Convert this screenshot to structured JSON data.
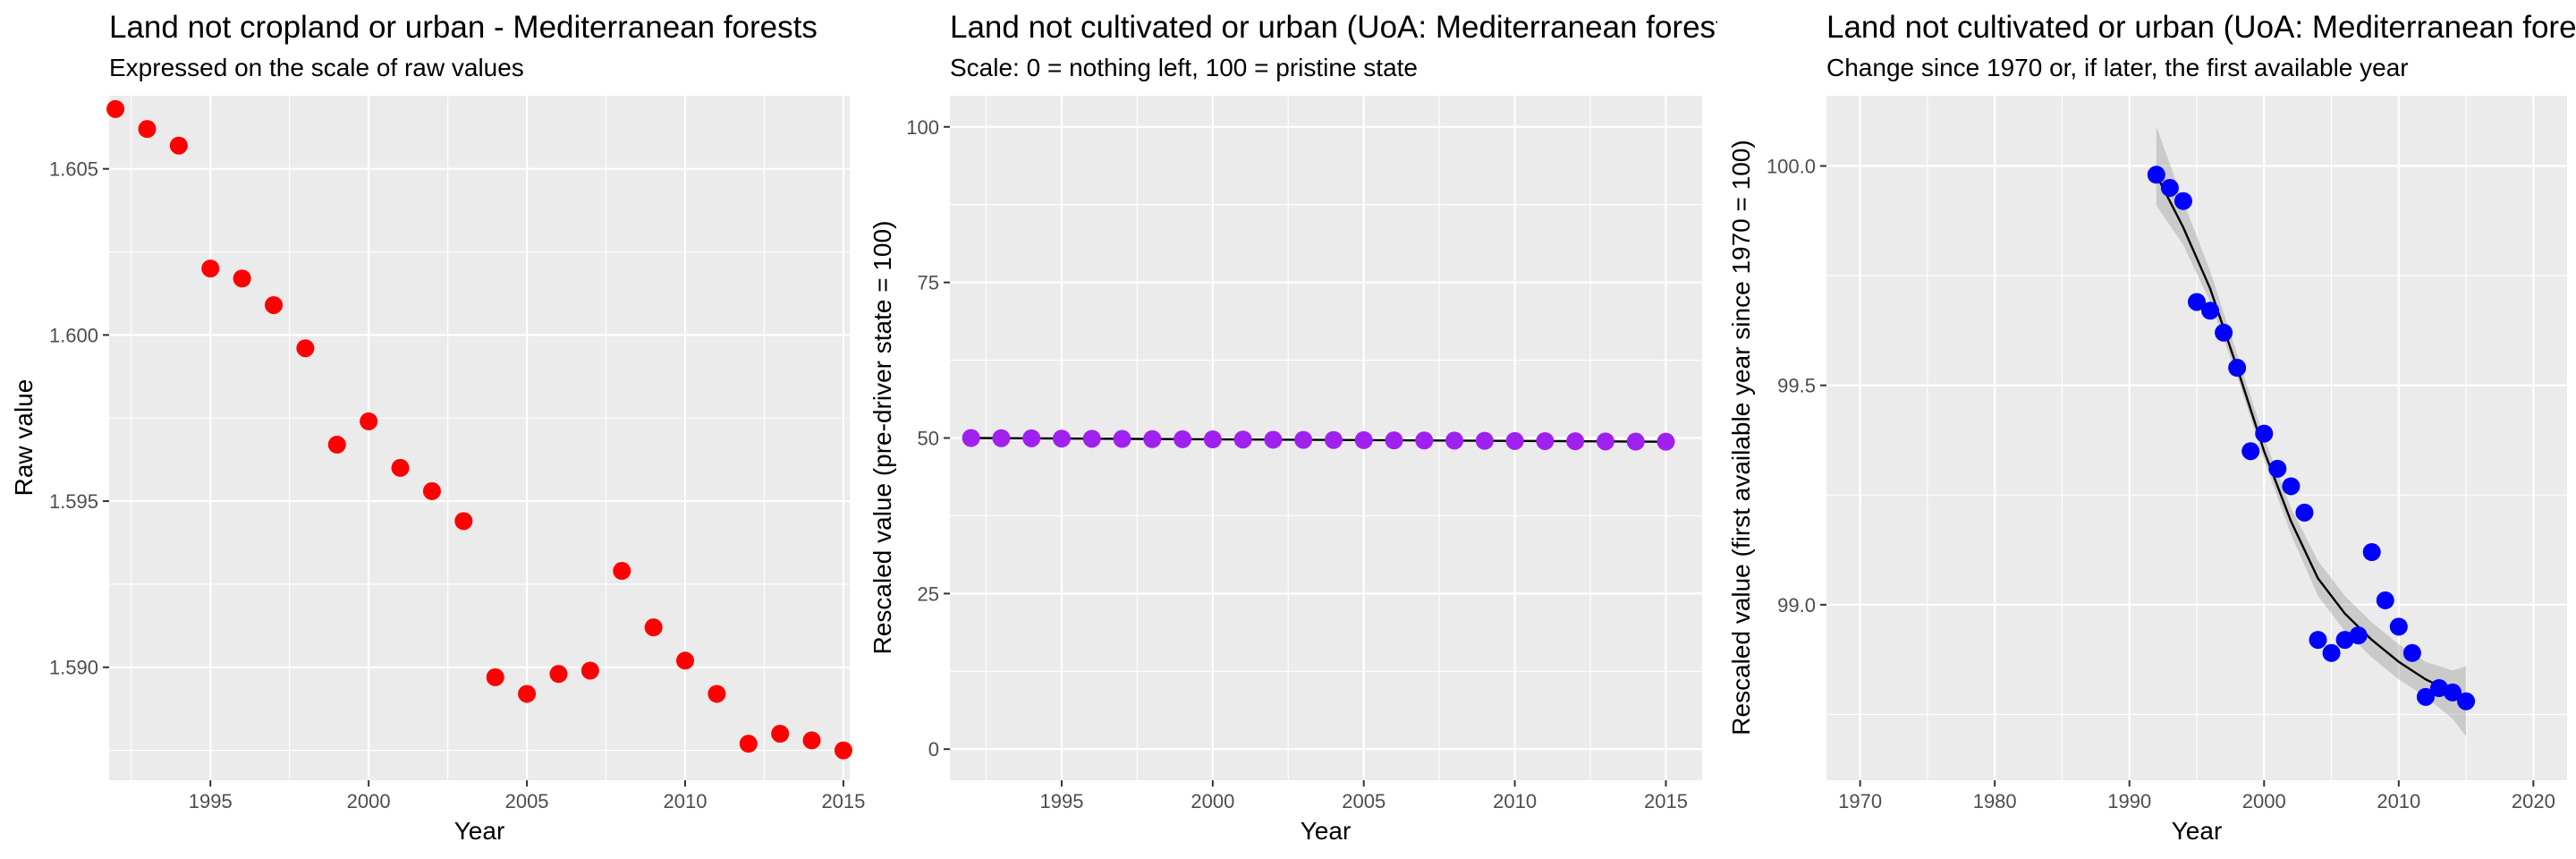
{
  "chart_data": [
    {
      "type": "scatter",
      "title": "Land not cropland or urban - Mediterranean forests",
      "subtitle": "Expressed on the scale of raw values",
      "xlabel": "Year",
      "ylabel": "Raw value",
      "xlim": [
        1991.8,
        2015.2
      ],
      "ylim": [
        1.5866,
        1.6072
      ],
      "xticks": [
        1995,
        2000,
        2005,
        2010,
        2015
      ],
      "yticks": [
        1.59,
        1.595,
        1.6,
        1.605
      ],
      "ytick_labels": [
        "1.590",
        "1.595",
        "1.600",
        "1.605"
      ],
      "grid": true,
      "point_color": "#ff0000",
      "series": [
        {
          "x": [
            1992,
            1993,
            1994,
            1995,
            1996,
            1997,
            1998,
            1999,
            2000,
            2001,
            2002,
            2003,
            2004,
            2005,
            2006,
            2007,
            2008,
            2009,
            2010,
            2011,
            2012,
            2013,
            2014,
            2015
          ],
          "values": [
            1.6068,
            1.6062,
            1.6057,
            1.602,
            1.6017,
            1.6009,
            1.5996,
            1.5967,
            1.5974,
            1.596,
            1.5953,
            1.5944,
            1.5897,
            1.5892,
            1.5898,
            1.5899,
            1.5929,
            1.5912,
            1.5902,
            1.5892,
            1.5877,
            1.588,
            1.5878,
            1.5875
          ]
        }
      ]
    },
    {
      "type": "scatter",
      "title": "Land not cultivated or urban (UoA: Mediterranean forests)",
      "subtitle": "Scale: 0 = nothing left, 100 = pristine state",
      "xlabel": "Year",
      "ylabel": "Rescaled value (pre-driver state = 100)",
      "xlim": [
        1991.3,
        2016.2
      ],
      "ylim": [
        -5,
        105
      ],
      "xticks": [
        1995,
        2000,
        2005,
        2010,
        2015
      ],
      "yticks": [
        0,
        25,
        50,
        75,
        100
      ],
      "ytick_labels": [
        "0",
        "25",
        "50",
        "75",
        "100"
      ],
      "grid": true,
      "point_color": "#a020f0",
      "trend_line": true,
      "series": [
        {
          "x": [
            1992,
            1993,
            1994,
            1995,
            1996,
            1997,
            1998,
            1999,
            2000,
            2001,
            2002,
            2003,
            2004,
            2005,
            2006,
            2007,
            2008,
            2009,
            2010,
            2011,
            2012,
            2013,
            2014,
            2015
          ],
          "values": [
            50.0,
            49.97,
            49.95,
            49.9,
            49.88,
            49.85,
            49.82,
            49.8,
            49.78,
            49.75,
            49.72,
            49.7,
            49.68,
            49.65,
            49.62,
            49.6,
            49.58,
            49.55,
            49.52,
            49.5,
            49.48,
            49.45,
            49.42,
            49.4
          ]
        }
      ]
    },
    {
      "type": "scatter",
      "title": "Land not cultivated or urban (UoA: Mediterranean forests)",
      "subtitle": "Change since 1970 or, if later, the first available year",
      "xlabel": "Year",
      "ylabel": "Rescaled value (first available year since 1970 = 100)",
      "xlim": [
        1967.5,
        2022.5
      ],
      "ylim": [
        98.6,
        100.16
      ],
      "xticks": [
        1970,
        1980,
        1990,
        2000,
        2010,
        2020
      ],
      "yticks": [
        99.0,
        99.5,
        100.0
      ],
      "ytick_labels": [
        "99.0",
        "99.5",
        "100.0"
      ],
      "grid": true,
      "point_color": "#0000ff",
      "smooth_with_ribbon": true,
      "series": [
        {
          "x": [
            1992,
            1993,
            1994,
            1995,
            1996,
            1997,
            1998,
            1999,
            2000,
            2001,
            2002,
            2003,
            2004,
            2005,
            2006,
            2007,
            2008,
            2009,
            2010,
            2011,
            2012,
            2013,
            2014,
            2015
          ],
          "values": [
            99.98,
            99.95,
            99.92,
            99.69,
            99.67,
            99.62,
            99.54,
            99.35,
            99.39,
            99.31,
            99.27,
            99.21,
            98.92,
            98.89,
            98.92,
            98.93,
            99.12,
            99.01,
            98.95,
            98.89,
            98.79,
            98.81,
            98.8,
            98.78
          ]
        }
      ],
      "smooth": {
        "x": [
          1992,
          1994,
          1996,
          1998,
          2000,
          2002,
          2004,
          2006,
          2008,
          2010,
          2012,
          2014,
          2015
        ],
        "y": [
          99.98,
          99.86,
          99.72,
          99.54,
          99.35,
          99.19,
          99.06,
          98.98,
          98.92,
          98.87,
          98.83,
          98.8,
          98.79
        ],
        "lower": [
          99.91,
          99.82,
          99.69,
          99.52,
          99.33,
          99.16,
          99.02,
          98.94,
          98.88,
          98.83,
          98.79,
          98.74,
          98.7
        ],
        "upper": [
          100.09,
          99.92,
          99.76,
          99.57,
          99.38,
          99.22,
          99.1,
          99.02,
          98.96,
          98.91,
          98.87,
          98.85,
          98.86
        ]
      }
    }
  ]
}
